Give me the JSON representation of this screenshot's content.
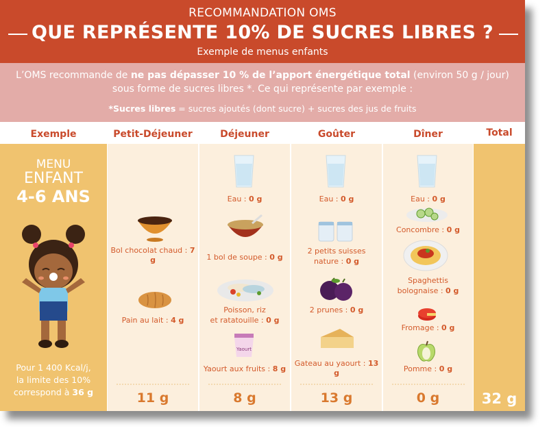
{
  "header": {
    "kicker": "RECOMMANDATION OMS",
    "title": "QUE REPRÉSENTE 10% DE SUCRES LIBRES ?",
    "subtitle": "Exemple de menus enfants"
  },
  "intro": {
    "l1_a": "L’OMS recommande de ",
    "l1_bold": "ne pas dépasser 10 % de l’apport énergétique total",
    "l1_b": " (environ 50 g / jour)",
    "l2": "sous forme de sucres libres *. Ce qui représente par exemple :",
    "l3_bold": "*Sucres libres",
    "l3": " = sucres ajoutés (dont sucre) + sucres des jus de fruits"
  },
  "columns": {
    "exemple": "Exemple",
    "petit_dejeuner": "Petit-Déjeuner",
    "dejeuner": "Déjeuner",
    "gouter": "Goûter",
    "diner": "Dîner",
    "total": "Total"
  },
  "profile": {
    "line1": "MENU",
    "line2": "ENFANT",
    "age": "4-6 ANS",
    "foot1": "Pour 1 400 Kcal/j,",
    "foot2": "la limite des 10%",
    "foot3": "correspond à ",
    "foot3_bold": "36 g"
  },
  "petit_dejeuner": [
    {
      "label": "Bol chocolat chaud : ",
      "value": "7 g"
    },
    {
      "label": "Pain au lait :  ",
      "value": "4 g"
    }
  ],
  "dejeuner": [
    {
      "label": "Eau : ",
      "value": "0 g"
    },
    {
      "label": "1 bol de soupe : ",
      "value": "0 g"
    },
    {
      "label": "Poisson, riz",
      "label2": "et ratatouille : ",
      "value": "0 g"
    },
    {
      "label": "Yaourt aux fruits : ",
      "value": "8 g"
    }
  ],
  "gouter": [
    {
      "label": "Eau : ",
      "value": "0 g"
    },
    {
      "label": "2 petits suisses",
      "label2": "nature : ",
      "value": "0 g"
    },
    {
      "label": "2 prunes : ",
      "value": "0 g"
    },
    {
      "label": "Gateau au yaourt : ",
      "value": "13 g"
    }
  ],
  "diner": [
    {
      "label": "Eau : ",
      "value": "0 g"
    },
    {
      "label": "Concombre : ",
      "value": "0 g"
    },
    {
      "label": "Spaghettis",
      "label2": "bolognaise : ",
      "value": "0 g"
    },
    {
      "label": "Fromage  : ",
      "value": "0 g"
    },
    {
      "label": "Pomme : ",
      "value": "0 g"
    }
  ],
  "totals": {
    "petit_dejeuner": "11 g",
    "dejeuner": "8 g",
    "gouter": "13 g",
    "diner": "0 g",
    "total": "32 g"
  },
  "yogurt_brand": "Yaourt"
}
